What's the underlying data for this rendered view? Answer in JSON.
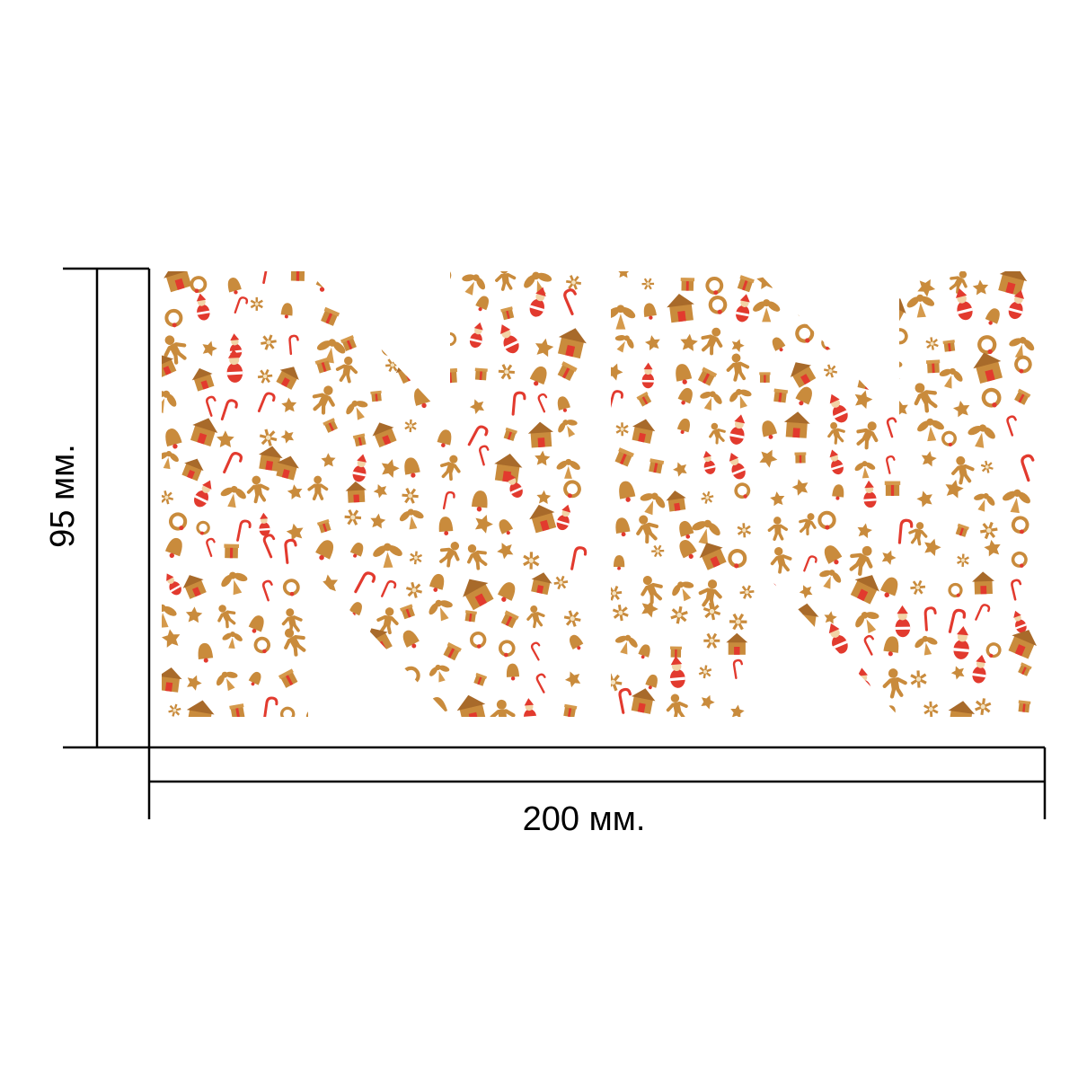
{
  "dimensions": {
    "height_label": "95 мм.",
    "width_label": "200 мм."
  },
  "stickers": [
    {
      "name": "left-n-sticker",
      "letter": "N"
    },
    {
      "name": "right-n-sticker",
      "letter": "N"
    }
  ],
  "pattern": {
    "theme": "christmas-gingerbread",
    "motifs": [
      "gingerbread-house-icon",
      "gingerbread-man-icon",
      "santa-icon",
      "angel-icon",
      "snowflake-icon",
      "wreath-icon",
      "bell-icon",
      "candy-cane-icon",
      "star-icon",
      "gift-icon"
    ],
    "colors": {
      "gingerbread": "#c98b3c",
      "icing": "#f3e2c0",
      "red": "#e23a2e",
      "pale": "#f2d3a6"
    }
  },
  "colors": {
    "line": "#000000",
    "background": "#ffffff"
  }
}
